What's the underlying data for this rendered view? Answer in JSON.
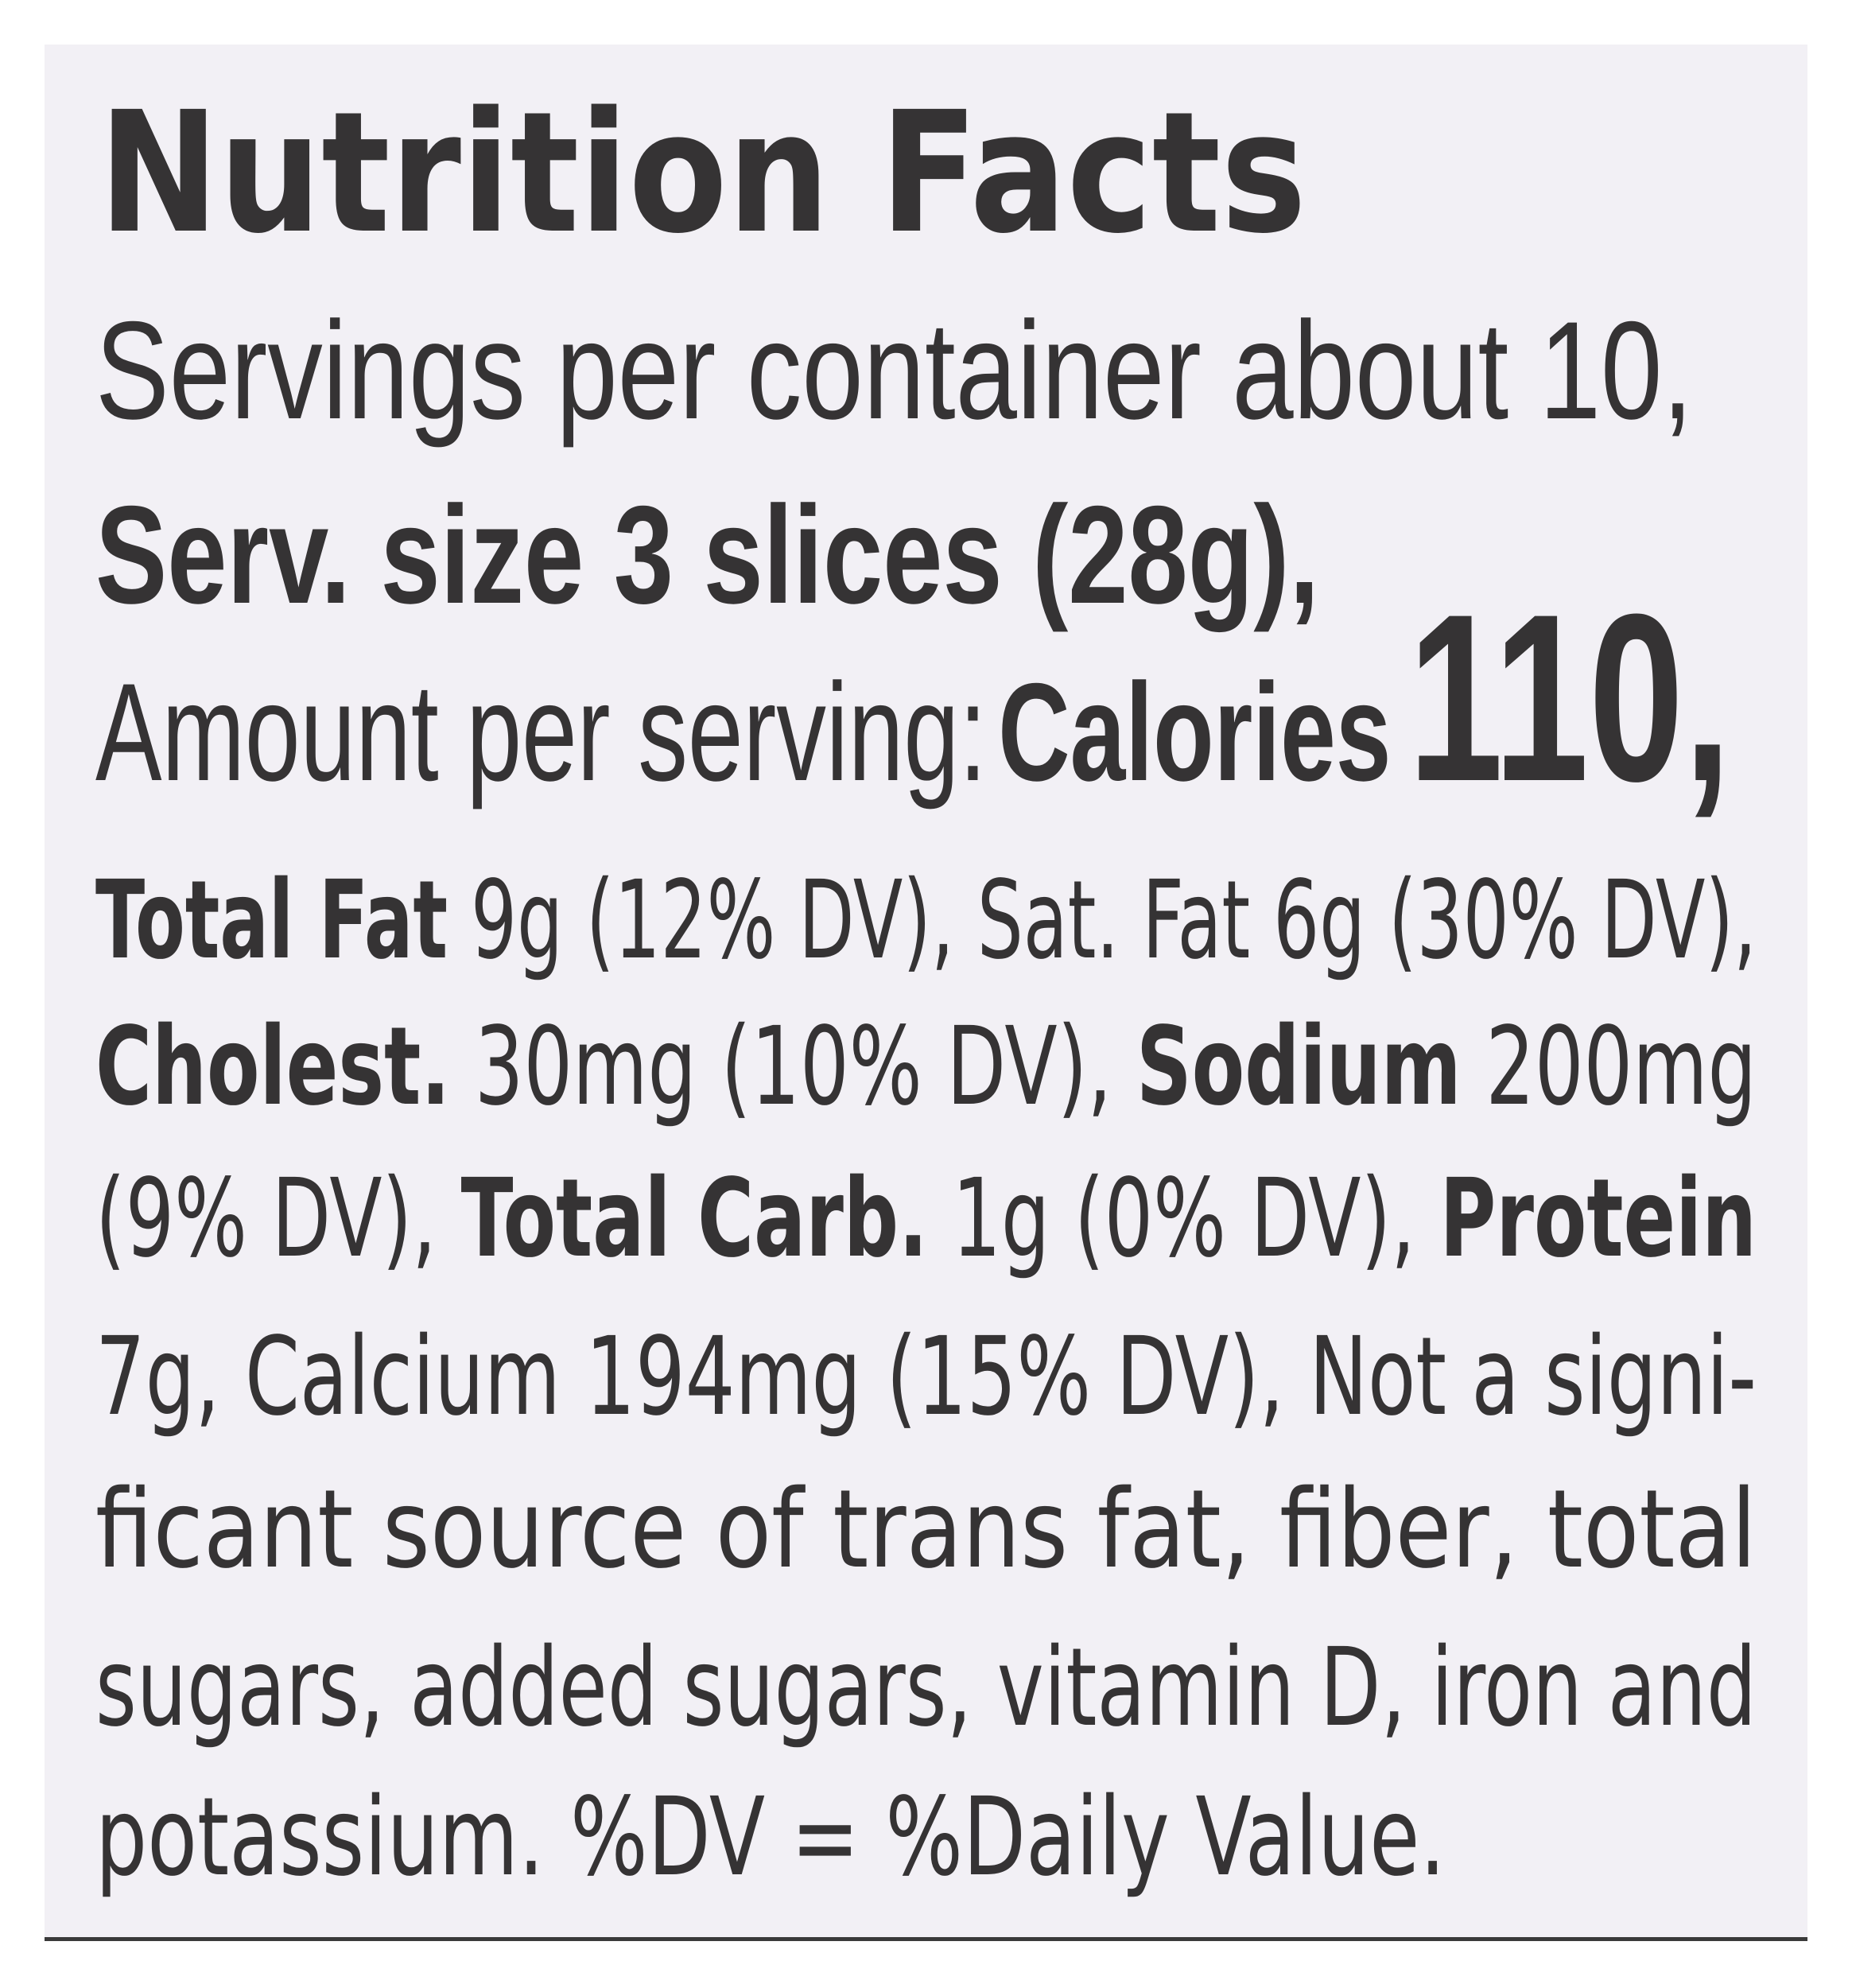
{
  "title": "Nutrition Facts",
  "servings": "Servings per container about 10,",
  "serving_size": "Serv. size 3 slices (28g),",
  "amount": {
    "label": "Amount per serving:",
    "calories_label": "Calories",
    "calories": "110,"
  },
  "body_lines": [
    [
      "Total Fat",
      " 9g (12% DV), Sat. Fat 6g (30% DV),"
    ],
    [
      "Cholest.",
      " 30mg (10% DV), ",
      "Sodium",
      " 200mg"
    ],
    [
      "(9% DV), ",
      "Total Carb.",
      " 1g (0% DV), ",
      "Protein"
    ],
    [
      "7g, Calcium 194mg (15% DV), Not a signi-"
    ],
    [
      "ficant source of trans fat, fiber, total"
    ],
    [
      "sugars, added sugars, vitamin D, iron and"
    ],
    [
      "potassium. %DV = %Daily Value."
    ]
  ]
}
